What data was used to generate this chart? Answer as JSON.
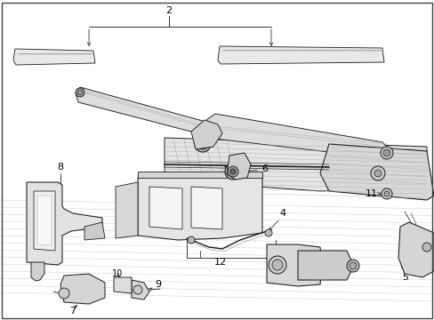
{
  "bg_color": "#ffffff",
  "fig_width": 4.89,
  "fig_height": 3.6,
  "dpi": 100,
  "lc": "#1a1a1a",
  "lw": 0.7,
  "label_fs": 8,
  "gray_fill": "#d8d8d8",
  "light_fill": "#eeeeee",
  "mid_fill": "#c8c8c8"
}
